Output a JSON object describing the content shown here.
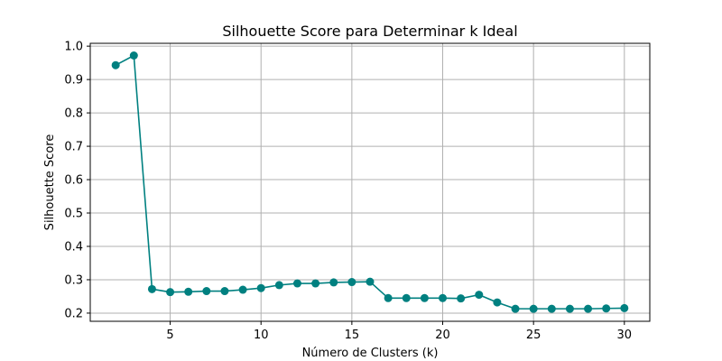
{
  "chart_data": {
    "type": "line",
    "title": "Silhouette Score para Determinar k Ideal",
    "xlabel": "Número de Clusters (k)",
    "ylabel": "Silhouette Score",
    "x": [
      2,
      3,
      4,
      5,
      6,
      7,
      8,
      9,
      10,
      11,
      12,
      13,
      14,
      15,
      16,
      17,
      18,
      19,
      20,
      21,
      22,
      23,
      24,
      25,
      26,
      27,
      28,
      29,
      30
    ],
    "series": [
      {
        "values": [
          0.943,
          0.972,
          0.272,
          0.263,
          0.264,
          0.266,
          0.266,
          0.27,
          0.275,
          0.284,
          0.289,
          0.289,
          0.292,
          0.293,
          0.294,
          0.245,
          0.245,
          0.245,
          0.245,
          0.244,
          0.255,
          0.232,
          0.213,
          0.213,
          0.213,
          0.213,
          0.213,
          0.214,
          0.215
        ]
      }
    ],
    "xlim": [
      0.6,
      31.4
    ],
    "ylim": [
      0.1755,
      1.0085
    ],
    "xticks": [
      5,
      10,
      15,
      20,
      25,
      30
    ],
    "xtick_labels": [
      "5",
      "10",
      "15",
      "20",
      "25",
      "30"
    ],
    "yticks": [
      0.2,
      0.3,
      0.4,
      0.5,
      0.6,
      0.7,
      0.8,
      0.9,
      1.0
    ],
    "ytick_labels": [
      "0.2",
      "0.3",
      "0.4",
      "0.5",
      "0.6",
      "0.7",
      "0.8",
      "0.9",
      "1.0"
    ],
    "grid": true,
    "marker": "circle",
    "color": "#008080"
  }
}
